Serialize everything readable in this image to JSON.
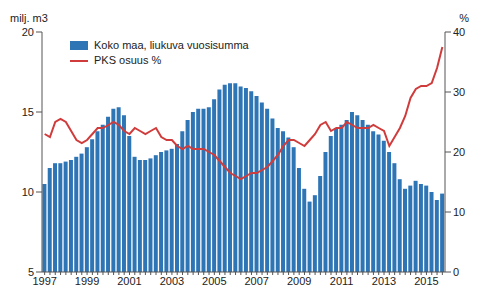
{
  "chart_data": {
    "type": "bar",
    "y_label": "milj. m3",
    "y2_label": "%",
    "legend": "upper left",
    "grid": false,
    "categories": [
      "1997",
      null,
      null,
      null,
      null,
      null,
      null,
      null,
      "1999",
      null,
      null,
      null,
      null,
      null,
      null,
      null,
      "2001",
      null,
      null,
      null,
      null,
      null,
      null,
      null,
      "2003",
      null,
      null,
      null,
      null,
      null,
      null,
      null,
      "2005",
      null,
      null,
      null,
      null,
      null,
      null,
      null,
      "2007",
      null,
      null,
      null,
      null,
      null,
      null,
      null,
      "2009",
      null,
      null,
      null,
      null,
      null,
      null,
      null,
      "2011",
      null,
      null,
      null,
      null,
      null,
      null,
      null,
      "2013",
      null,
      null,
      null,
      null,
      null,
      null,
      null,
      "2015",
      null,
      null,
      null
    ],
    "ylim": [
      5,
      20
    ],
    "yticks": [
      5,
      10,
      15,
      20
    ],
    "y2lim": [
      0,
      40
    ],
    "y2ticks": [
      0,
      10,
      20,
      30,
      40
    ],
    "series": [
      {
        "name": "Koko maa, liukuva vuosisumma",
        "type": "bar",
        "color": "#2e75b6",
        "values": [
          10.5,
          11.5,
          11.8,
          11.8,
          11.9,
          12.0,
          12.2,
          12.4,
          12.8,
          13.3,
          13.8,
          14.2,
          14.7,
          15.2,
          15.3,
          14.8,
          13.5,
          12.2,
          12.0,
          12.0,
          12.1,
          12.3,
          12.5,
          12.6,
          12.7,
          13.0,
          13.8,
          14.5,
          15.0,
          15.2,
          15.2,
          15.3,
          15.8,
          16.4,
          16.7,
          16.8,
          16.8,
          16.6,
          16.5,
          16.3,
          16.0,
          15.6,
          15.2,
          14.6,
          14.0,
          13.8,
          13.4,
          12.8,
          11.5,
          10.2,
          9.4,
          9.8,
          11.0,
          12.5,
          13.5,
          14.0,
          14.2,
          14.5,
          15.0,
          14.8,
          14.5,
          14.2,
          13.8,
          13.6,
          13.2,
          12.5,
          11.8,
          10.8,
          10.2,
          10.4,
          10.7,
          10.5,
          10.4,
          10.0,
          9.5,
          9.9
        ]
      },
      {
        "name": "PKS osuus %",
        "type": "line",
        "axis": "y2",
        "color": "#d03c3c",
        "values": [
          23,
          22.5,
          25,
          25.5,
          25,
          23.5,
          22,
          21.5,
          22,
          23,
          24,
          24,
          24.5,
          25,
          24.5,
          23.5,
          23,
          24,
          23.5,
          23,
          23.5,
          24,
          22.5,
          22,
          22,
          21,
          20.5,
          21,
          20.5,
          20.5,
          20.5,
          20,
          19.5,
          18.5,
          17.5,
          16.5,
          16,
          15.5,
          16,
          16.5,
          16.5,
          17,
          17.5,
          18.5,
          19.5,
          21,
          22,
          22,
          21.5,
          21,
          22,
          23,
          24.5,
          25,
          23.5,
          24,
          24,
          25,
          24.5,
          24,
          24,
          24,
          24.5,
          24,
          23.5,
          21,
          22.5,
          24,
          26,
          29,
          30.5,
          31,
          31,
          31.5,
          34,
          37.5
        ]
      }
    ]
  }
}
